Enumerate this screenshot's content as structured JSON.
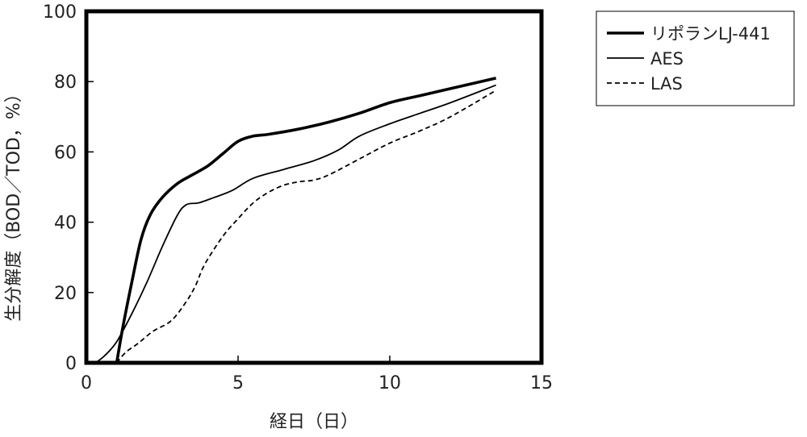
{
  "chart_data": {
    "type": "line",
    "xlabel": "経日（日）",
    "ylabel": "生分解度（BOD／TOD，%）",
    "xlim": [
      0,
      15
    ],
    "ylim": [
      0,
      100
    ],
    "xticks": [
      0,
      5,
      10,
      15
    ],
    "yticks": [
      0,
      20,
      40,
      60,
      80,
      100
    ],
    "x_tick_labels": [
      "0",
      "5",
      "10",
      "15"
    ],
    "y_tick_labels": [
      "0",
      "20",
      "40",
      "60",
      "80",
      "100"
    ],
    "grid": false,
    "legend_position": "top-right, outside plot",
    "series": [
      {
        "name": "リポランLJ-441",
        "style": "thick-solid",
        "color": "#000000",
        "x": [
          1.0,
          1.2,
          1.5,
          1.8,
          2.1,
          2.5,
          3.0,
          3.5,
          4.0,
          4.5,
          5.0,
          5.5,
          6.0,
          7.0,
          8.0,
          9.0,
          10.0,
          11.0,
          12.0,
          13.5
        ],
        "y": [
          0,
          10,
          23,
          35,
          42,
          47,
          51,
          53.5,
          56,
          59.5,
          63,
          64.5,
          65,
          66.5,
          68.5,
          71,
          74,
          76,
          78,
          81
        ]
      },
      {
        "name": "AES",
        "style": "thin-solid",
        "color": "#000000",
        "x": [
          0.3,
          0.6,
          1.0,
          1.5,
          2.0,
          2.5,
          3.0,
          3.3,
          3.7,
          4.2,
          4.8,
          5.5,
          6.5,
          7.5,
          8.3,
          9.0,
          10.0,
          11.0,
          12.0,
          13.5
        ],
        "y": [
          0,
          2,
          6,
          14,
          23,
          33,
          42,
          45,
          45.5,
          47,
          49,
          52.5,
          55,
          57.5,
          60.5,
          64.5,
          68,
          71,
          74,
          79
        ]
      },
      {
        "name": "LAS",
        "style": "dashed",
        "color": "#000000",
        "x": [
          1.0,
          1.3,
          1.7,
          2.2,
          2.8,
          3.3,
          3.6,
          3.9,
          4.5,
          5.0,
          5.5,
          6.0,
          6.5,
          7.0,
          7.5,
          8.0,
          9.0,
          10.0,
          11.0,
          12.0,
          13.5
        ],
        "y": [
          0,
          3,
          5.5,
          9,
          12,
          17.5,
          22,
          28,
          36,
          41,
          45.5,
          48.5,
          50.5,
          51.5,
          52,
          53.5,
          58,
          62.5,
          66,
          70,
          77.5
        ]
      }
    ]
  }
}
